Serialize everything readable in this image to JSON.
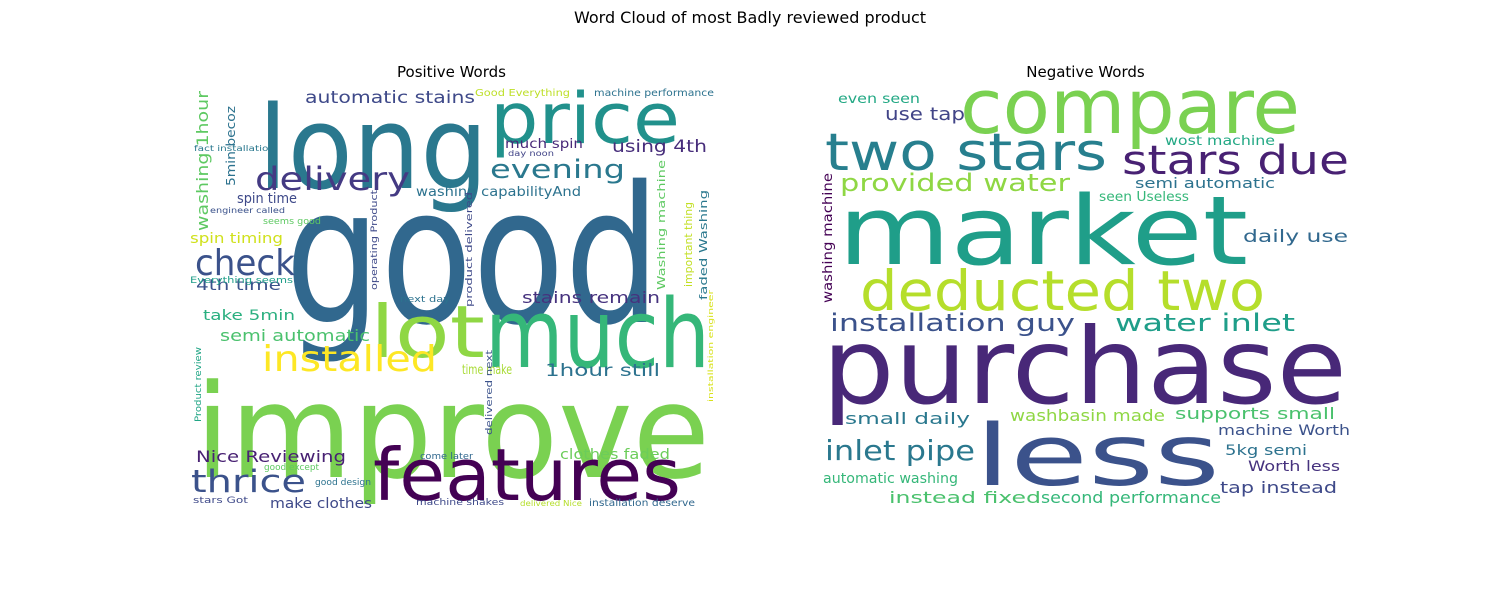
{
  "title": "Word Cloud of most Badly reviewed product",
  "chart_data": [
    {
      "type": "wordcloud",
      "title": "Positive Words",
      "words": [
        {
          "text": "good",
          "color": "#31688e"
        },
        {
          "text": "improve",
          "color": "#7ad151"
        },
        {
          "text": "long",
          "color": "#2a788e"
        },
        {
          "text": "much",
          "color": "#35b779"
        },
        {
          "text": "price",
          "color": "#21918c"
        },
        {
          "text": "features",
          "color": "#440154"
        },
        {
          "text": "lot",
          "color": "#8fd744"
        },
        {
          "text": "installed",
          "color": "#fde725"
        },
        {
          "text": "delivery",
          "color": "#443a83"
        },
        {
          "text": "evening",
          "color": "#2a788e"
        },
        {
          "text": "check",
          "color": "#3b528b"
        },
        {
          "text": "thrice",
          "color": "#3b528b"
        },
        {
          "text": "automatic stains",
          "color": "#3e4989"
        },
        {
          "text": "using 4th",
          "color": "#472d7b"
        },
        {
          "text": "stains remain",
          "color": "#46327e"
        },
        {
          "text": "1hour still",
          "color": "#2c728e"
        },
        {
          "text": "Nice Reviewing",
          "color": "#482173"
        },
        {
          "text": "semi automatic",
          "color": "#4ac16d"
        },
        {
          "text": "4th time",
          "color": "#3b528b"
        },
        {
          "text": "washing 1hour",
          "color": "#5ec962"
        },
        {
          "text": "spin time",
          "color": "#3e4989"
        },
        {
          "text": "spin timing",
          "color": "#d0e11c"
        },
        {
          "text": "take 5min",
          "color": "#29af7f"
        },
        {
          "text": "clothes faded",
          "color": "#6ccd5a"
        },
        {
          "text": "washing capabilityAnd",
          "color": "#2c728e"
        },
        {
          "text": "much spin",
          "color": "#482878"
        },
        {
          "text": "make clothes",
          "color": "#3e4989"
        },
        {
          "text": "time make",
          "color": "#a8db34"
        },
        {
          "text": "Washing machine",
          "color": "#5ec962"
        },
        {
          "text": "faded Washing",
          "color": "#2a788e"
        },
        {
          "text": "important thing",
          "color": "#c2df23"
        },
        {
          "text": "5min becoz",
          "color": "#2c728e"
        },
        {
          "text": "Good Everything",
          "color": "#bddf26"
        },
        {
          "text": "machine performance",
          "color": "#2c728e"
        },
        {
          "text": "fact installation",
          "color": "#2a788e"
        },
        {
          "text": "engineer called",
          "color": "#3b528b"
        },
        {
          "text": "seems good",
          "color": "#5ec962"
        },
        {
          "text": "Everything seems",
          "color": "#1f9e89"
        },
        {
          "text": "operating Product",
          "color": "#3e4989"
        },
        {
          "text": "product delivered",
          "color": "#3e4989"
        },
        {
          "text": "next day",
          "color": "#2c728e"
        },
        {
          "text": "day noon",
          "color": "#414487"
        },
        {
          "text": "delivered next",
          "color": "#3b528b"
        },
        {
          "text": "come later",
          "color": "#31688e"
        },
        {
          "text": "good except",
          "color": "#5ec962"
        },
        {
          "text": "good design",
          "color": "#2c728e"
        },
        {
          "text": "stars Got",
          "color": "#3e4989"
        },
        {
          "text": "machine shakes",
          "color": "#3e4989"
        },
        {
          "text": "delivered Nice",
          "color": "#b5de2b"
        },
        {
          "text": "installation deserve",
          "color": "#31688e"
        },
        {
          "text": "Product review",
          "color": "#21a585"
        },
        {
          "text": "installation engineer",
          "color": "#d8e219"
        }
      ]
    },
    {
      "type": "wordcloud",
      "title": "Negative Words",
      "words": [
        {
          "text": "purchase",
          "color": "#482878"
        },
        {
          "text": "market",
          "color": "#1f9e89"
        },
        {
          "text": "compare",
          "color": "#7ad151"
        },
        {
          "text": "less",
          "color": "#3b528b"
        },
        {
          "text": "deducted two",
          "color": "#b5de2b"
        },
        {
          "text": "two stars",
          "color": "#277f8e"
        },
        {
          "text": "stars due",
          "color": "#482173"
        },
        {
          "text": "provided water",
          "color": "#8fd744"
        },
        {
          "text": "installation guy",
          "color": "#3b528b"
        },
        {
          "text": "water inlet",
          "color": "#1f9e89"
        },
        {
          "text": "inlet pipe",
          "color": "#2a788e"
        },
        {
          "text": "daily use",
          "color": "#31688e"
        },
        {
          "text": "use tap",
          "color": "#414487"
        },
        {
          "text": "even seen",
          "color": "#22a884"
        },
        {
          "text": "semi automatic",
          "color": "#2c728e"
        },
        {
          "text": "wost machine",
          "color": "#22a884"
        },
        {
          "text": "seen Useless",
          "color": "#35b779"
        },
        {
          "text": "washing machine",
          "color": "#440154"
        },
        {
          "text": "small daily",
          "color": "#2a788e"
        },
        {
          "text": "washbasin made",
          "color": "#8fd744"
        },
        {
          "text": "supports small",
          "color": "#4ac16d"
        },
        {
          "text": "machine Worth",
          "color": "#3b528b"
        },
        {
          "text": "5kg semi",
          "color": "#2c728e"
        },
        {
          "text": "Worth less",
          "color": "#46327e"
        },
        {
          "text": "tap instead",
          "color": "#3e4989"
        },
        {
          "text": "automatic washing",
          "color": "#35b779"
        },
        {
          "text": "instead fixed",
          "color": "#4ac16d"
        },
        {
          "text": "second performance",
          "color": "#35b779"
        }
      ]
    }
  ]
}
